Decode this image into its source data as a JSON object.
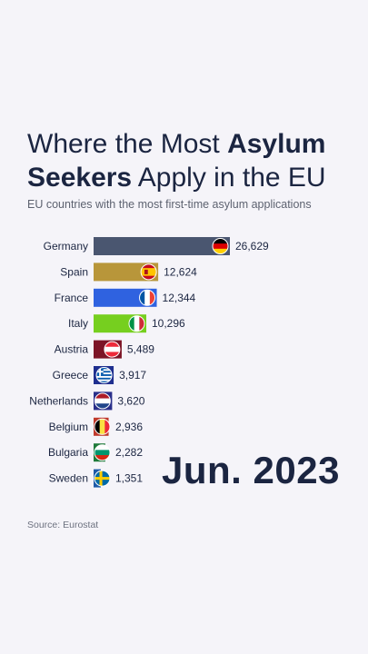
{
  "header": {
    "title_part1": "Where the Most ",
    "title_bold1": "Asylum",
    "title_bold2": "Seekers",
    "title_part2": " Apply in the EU",
    "subtitle": "EU countries with the most first-time asylum applications"
  },
  "date_label": "Jun. 2023",
  "source": "Source: Eurostat",
  "chart_data": {
    "type": "bar",
    "orientation": "horizontal",
    "title": "Where the Most Asylum Seekers Apply in the EU",
    "subtitle": "EU countries with the most first-time asylum applications",
    "categories": [
      "Germany",
      "Spain",
      "France",
      "Italy",
      "Austria",
      "Greece",
      "Netherlands",
      "Belgium",
      "Bulgaria",
      "Sweden"
    ],
    "values": [
      26629,
      12624,
      12344,
      10296,
      5489,
      3917,
      3620,
      2936,
      2282,
      1351
    ],
    "value_labels": [
      "26,629",
      "12,624",
      "12,344",
      "10,296",
      "5,489",
      "3,917",
      "3,620",
      "2,936",
      "2,282",
      "1,351"
    ],
    "colors": [
      "#4a5670",
      "#b8963a",
      "#2f62e0",
      "#76cf1f",
      "#7c1426",
      "#1f2f8f",
      "#2a2f8a",
      "#c0392b",
      "#1f7a3a",
      "#1d5aa8"
    ],
    "flags": [
      "germany-flag",
      "spain-flag",
      "france-flag",
      "italy-flag",
      "austria-flag",
      "greece-flag",
      "netherlands-flag",
      "belgium-flag",
      "bulgaria-flag",
      "sweden-flag"
    ],
    "grid": false,
    "legend": "none"
  }
}
